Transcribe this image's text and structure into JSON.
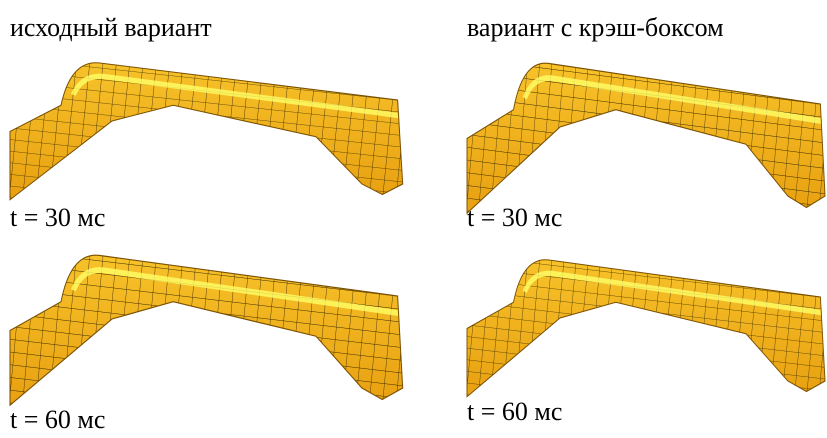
{
  "columns": [
    {
      "title": "исходный вариант",
      "panels": [
        {
          "label": "t = 30 мс"
        },
        {
          "label": "t = 60 мс"
        }
      ]
    },
    {
      "title": "вариант с крэш-боксом",
      "panels": [
        {
          "label": "t = 30 мс"
        },
        {
          "label": "t = 60 мс"
        }
      ]
    }
  ]
}
